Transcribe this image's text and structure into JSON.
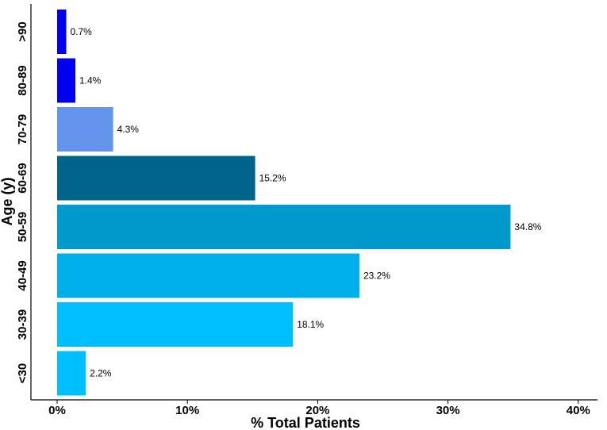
{
  "chart_data": {
    "type": "bar",
    "orientation": "horizontal",
    "xlabel": "% Total Patients",
    "ylabel": "Age (y)",
    "xlim": [
      0,
      40
    ],
    "x_ticks": [
      0,
      10,
      20,
      30,
      40
    ],
    "x_tick_labels": [
      "0%",
      "10%",
      "20%",
      "30%",
      "40%"
    ],
    "grid": false,
    "legend": "none",
    "categories": [
      ">90",
      "80-89",
      "70-79",
      "60-69",
      "50-59",
      "40-49",
      "30-39",
      "<30"
    ],
    "values": [
      0.7,
      1.4,
      4.3,
      15.2,
      34.8,
      23.2,
      18.1,
      2.2
    ],
    "value_labels": [
      "0.7%",
      "1.4%",
      "4.3%",
      "15.2%",
      "34.8%",
      "23.2%",
      "18.1%",
      "2.2%"
    ],
    "colors": [
      "#0000ee",
      "#0000ee",
      "#6495ed",
      "#00658b",
      "#009acd",
      "#00aeea",
      "#00bfff",
      "#00bfff"
    ]
  }
}
